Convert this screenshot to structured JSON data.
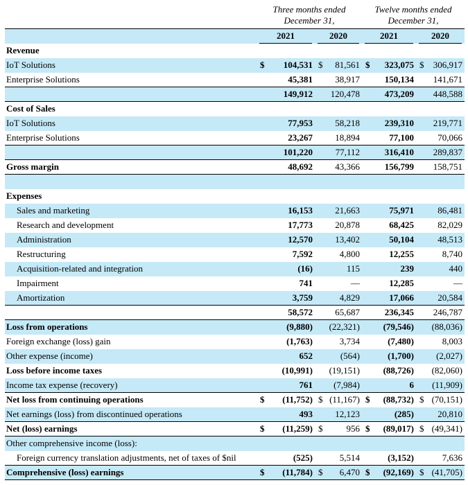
{
  "colors": {
    "row_highlight": "#c5e9f7"
  },
  "header": {
    "groups": [
      {
        "line1": "Three months ended",
        "line2": "December 31,"
      },
      {
        "line1": "Twelve months ended",
        "line2": "December 31,"
      }
    ],
    "years": [
      "2021",
      "2020",
      "2021",
      "2020"
    ]
  },
  "rows": [
    {
      "label": "Revenue",
      "bold": true,
      "values": [
        "",
        "",
        "",
        ""
      ]
    },
    {
      "label": "IoT Solutions",
      "shaded": true,
      "dollar": true,
      "values": [
        "104,531",
        "81,561",
        "323,075",
        "306,917"
      ]
    },
    {
      "label": "Enterprise Solutions",
      "rule": true,
      "values": [
        "45,381",
        "38,917",
        "150,134",
        "141,671"
      ]
    },
    {
      "label": "",
      "shaded": true,
      "rule": true,
      "values": [
        "149,912",
        "120,478",
        "473,209",
        "448,588"
      ]
    },
    {
      "label": "Cost of Sales",
      "bold": true,
      "values": [
        "",
        "",
        "",
        ""
      ]
    },
    {
      "label": "IoT Solutions",
      "shaded": true,
      "values": [
        "77,953",
        "58,218",
        "239,310",
        "219,771"
      ]
    },
    {
      "label": "Enterprise Solutions",
      "rule": true,
      "values": [
        "23,267",
        "18,894",
        "77,100",
        "70,066"
      ]
    },
    {
      "label": "",
      "shaded": true,
      "rule": true,
      "values": [
        "101,220",
        "77,112",
        "316,410",
        "289,837"
      ]
    },
    {
      "label": "Gross margin",
      "bold": true,
      "rule": true,
      "values": [
        "48,692",
        "43,366",
        "156,799",
        "158,751"
      ]
    },
    {
      "label": "",
      "shaded": true,
      "values": [
        "",
        "",
        "",
        ""
      ]
    },
    {
      "label": "Expenses",
      "bold": true,
      "values": [
        "",
        "",
        "",
        ""
      ]
    },
    {
      "label": "Sales and marketing",
      "indent": true,
      "shaded": true,
      "values": [
        "16,153",
        "21,663",
        "75,971",
        "86,481"
      ]
    },
    {
      "label": "Research and development",
      "indent": true,
      "values": [
        "17,773",
        "20,878",
        "68,425",
        "82,029"
      ]
    },
    {
      "label": "Administration",
      "indent": true,
      "shaded": true,
      "values": [
        "12,570",
        "13,402",
        "50,104",
        "48,513"
      ]
    },
    {
      "label": "Restructuring",
      "indent": true,
      "values": [
        "7,592",
        "4,800",
        "12,255",
        "8,740"
      ]
    },
    {
      "label": "Acquisition-related and integration",
      "indent": true,
      "shaded": true,
      "values": [
        "(16)",
        "115",
        "239",
        "440"
      ]
    },
    {
      "label": "Impairment",
      "indent": true,
      "values": [
        "741",
        "—",
        "12,285",
        "—"
      ]
    },
    {
      "label": "Amortization",
      "indent": true,
      "shaded": true,
      "rule": true,
      "values": [
        "3,759",
        "4,829",
        "17,066",
        "20,584"
      ]
    },
    {
      "label": "",
      "rule": true,
      "values": [
        "58,572",
        "65,687",
        "236,345",
        "246,787"
      ]
    },
    {
      "label": "Loss from operations",
      "bold": true,
      "shaded": true,
      "values": [
        "(9,880)",
        "(22,321)",
        "(79,546)",
        "(88,036)"
      ]
    },
    {
      "label": "Foreign exchange (loss) gain",
      "values": [
        "(1,763)",
        "3,734",
        "(7,480)",
        "8,003"
      ]
    },
    {
      "label": "Other expense (income)",
      "shaded": true,
      "values": [
        "652",
        "(564)",
        "(1,700)",
        "(2,027)"
      ]
    },
    {
      "label": "Loss before income taxes",
      "bold": true,
      "values": [
        "(10,991)",
        "(19,151)",
        "(88,726)",
        "(82,060)"
      ]
    },
    {
      "label": "Income tax expense (recovery)",
      "shaded": true,
      "rule": true,
      "values": [
        "761",
        "(7,984)",
        "6",
        "(11,909)"
      ]
    },
    {
      "label": "Net loss from continuing operations",
      "bold": true,
      "dollar": true,
      "values": [
        "(11,752)",
        "(11,167)",
        "(88,732)",
        "(70,151)"
      ]
    },
    {
      "label": "Net earnings (loss) from discontinued operations",
      "shaded": true,
      "rule": true,
      "values": [
        "493",
        "12,123",
        "(285)",
        "20,810"
      ]
    },
    {
      "label": "Net (loss) earnings",
      "bold": true,
      "dollar": true,
      "rule": true,
      "values": [
        "(11,259)",
        "956",
        "(89,017)",
        "(49,341)"
      ]
    },
    {
      "label": "Other comprehensive income (loss):",
      "shaded": true,
      "values": [
        "",
        "",
        "",
        ""
      ]
    },
    {
      "label": "Foreign currency translation adjustments, net of taxes of $nil",
      "indent": true,
      "rule": true,
      "values": [
        "(525)",
        "5,514",
        "(3,152)",
        "7,636"
      ]
    },
    {
      "label": "Comprehensive (loss) earnings",
      "bold": true,
      "shaded": true,
      "dollar": true,
      "rule": true,
      "values": [
        "(11,784)",
        "6,470",
        "(92,169)",
        "(41,705)"
      ]
    }
  ]
}
